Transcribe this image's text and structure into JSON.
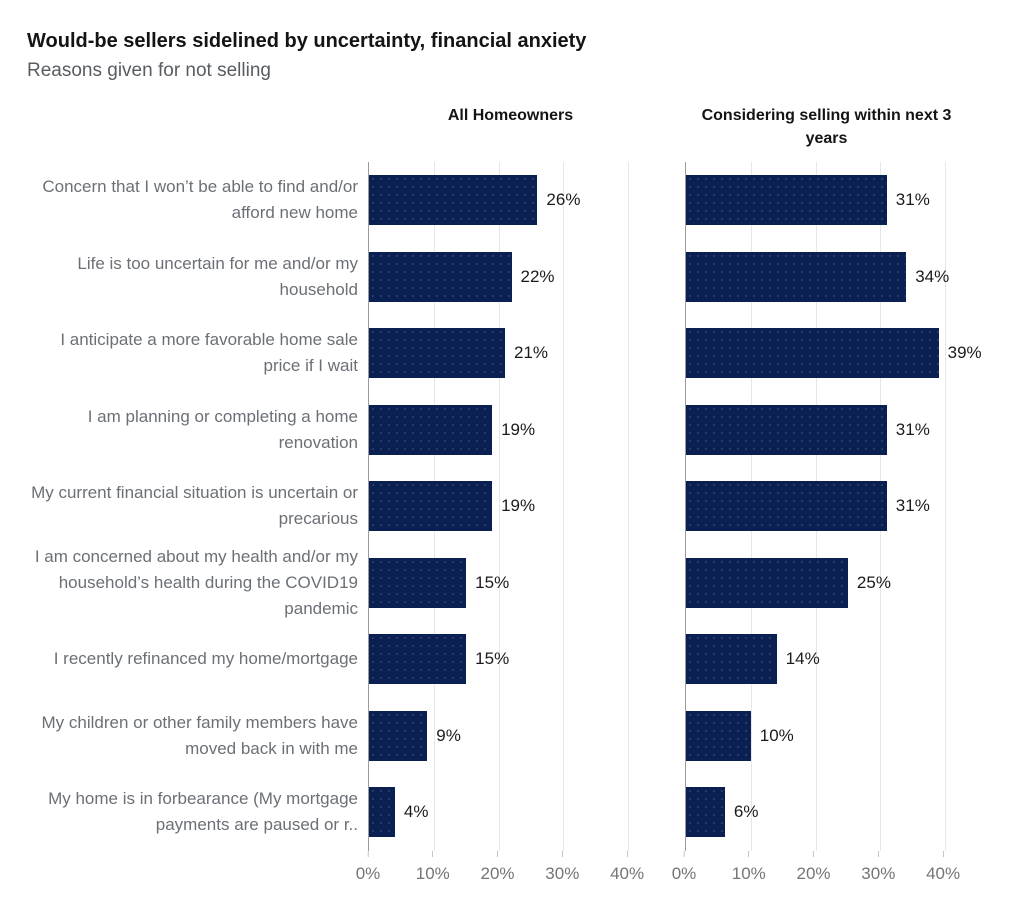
{
  "header": {
    "title": "Would-be sellers sidelined by uncertainty, financial anxiety",
    "subtitle": "Reasons given for not selling"
  },
  "chart_data": {
    "type": "bar",
    "orientation": "horizontal",
    "title": "Would-be sellers sidelined by uncertainty, financial anxiety",
    "subtitle": "Reasons given for not selling",
    "categories": [
      "Concern that I won’t be able to find and/or afford new home",
      "Life is too uncertain for me and/or my household",
      "I anticipate a more favorable home sale price if I wait",
      "I am planning or completing a home renovation",
      "My current financial situation is uncertain or precarious",
      "I am concerned about my health and/or my household’s health during the COVID19 pandemic",
      "I recently refinanced my home/mortgage",
      "My children or other family members have moved back in with me",
      "My home is in forbearance (My mortgage payments are paused or r.."
    ],
    "panels": [
      {
        "name": "All Homeowners",
        "values": [
          26,
          22,
          21,
          19,
          19,
          15,
          15,
          9,
          4
        ]
      },
      {
        "name": "Considering selling within next 3 years",
        "values": [
          31,
          34,
          39,
          31,
          31,
          25,
          14,
          10,
          6
        ]
      }
    ],
    "value_suffix": "%",
    "x_ticks": [
      "0%",
      "10%",
      "20%",
      "30%",
      "40%"
    ],
    "x_tick_values": [
      0,
      10,
      20,
      30,
      40
    ],
    "xlim": [
      0,
      44
    ],
    "grid": true,
    "legend": "none",
    "bar_color": "#0b2052"
  }
}
